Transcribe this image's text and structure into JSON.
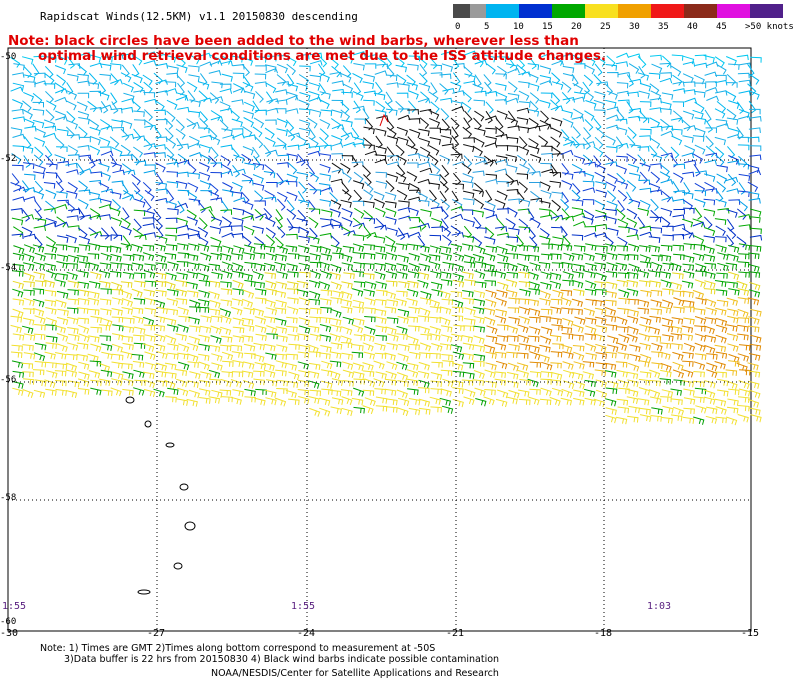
{
  "title": "Rapidscat Winds(12.5KM) v1.1 20150830 descending",
  "note": {
    "line1": "Note: black circles have been added to the wind barbs, wherever less than",
    "line2": "optimal wind retrieval conditions are met due to the ISS attitude changes."
  },
  "legend": {
    "colors": [
      "#4a4a4a",
      "#9a9a9a",
      "#00b4f0",
      "#00b4f0",
      "#0030d0",
      "#0030d0",
      "#00a800",
      "#00a800",
      "#f8e020",
      "#f8e020",
      "#f0a000",
      "#f0a000",
      "#f01818",
      "#f01818",
      "#8b2a1a",
      "#8b2a1a",
      "#e010e0",
      "#e010e0",
      "#50208a",
      "#50208a"
    ],
    "ticks": [
      "0",
      "5",
      "10",
      "15",
      "20",
      "25",
      "30",
      "35",
      "40",
      "45",
      ">50 knots"
    ]
  },
  "latitude_labels": [
    "-50",
    "-52",
    "-54",
    "-56",
    "-58",
    "-60"
  ],
  "longitude_labels": [
    "-30",
    "-27",
    "-24",
    "-21",
    "-18",
    "-15"
  ],
  "time_labels": [
    "1:55",
    "1:55",
    "1:03"
  ],
  "footer": {
    "line1": "Note: 1) Times are GMT 2)Times along bottom correspond to measurement at -50S",
    "line2": "3)Data buffer is 22 hrs from 20150830 4) Black wind barbs indicate possible contamination",
    "line3": "NOAA/NESDIS/Center for Satellite Applications and Research"
  }
}
